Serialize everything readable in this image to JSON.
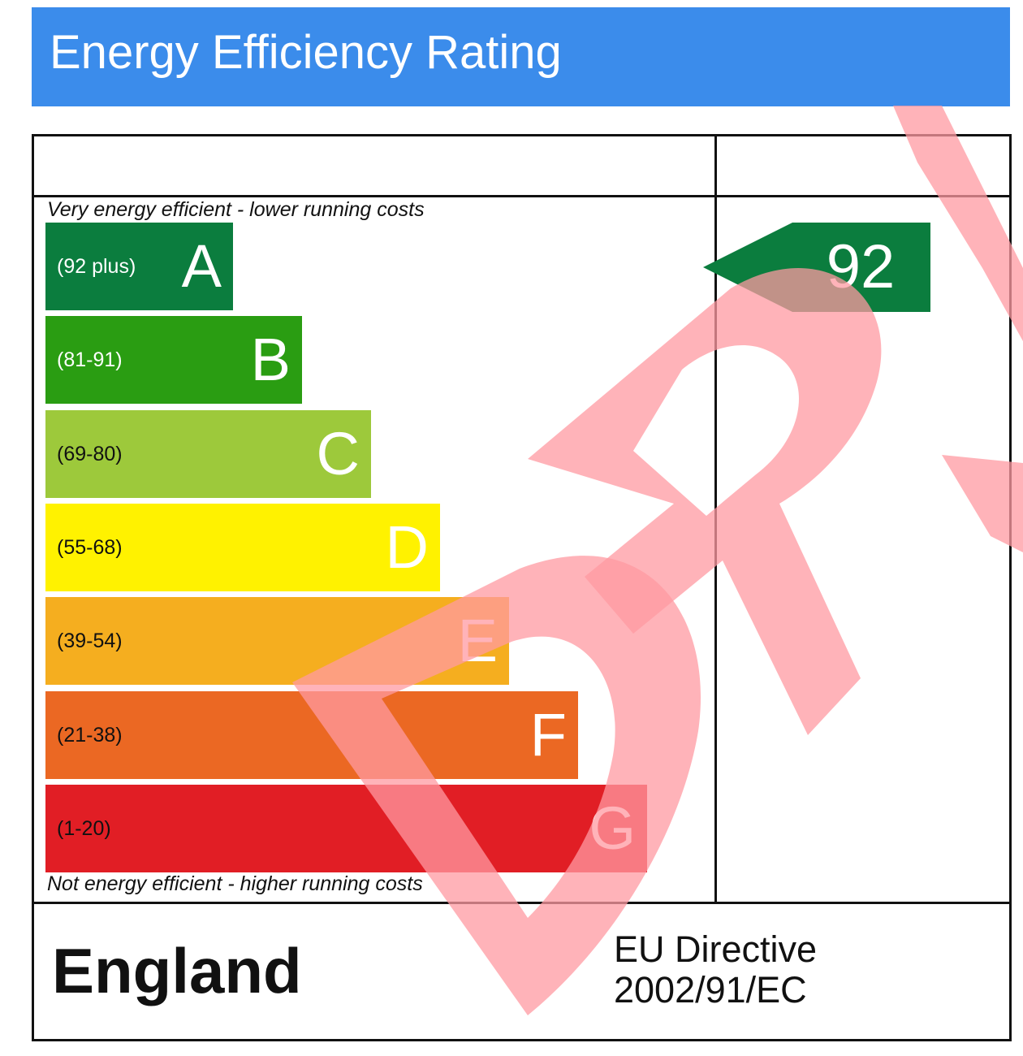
{
  "header": {
    "title": "Energy Efficiency Rating",
    "background": "#3b8ceb"
  },
  "watermark": {
    "text": "DRAFT",
    "color": "#ff9aa2"
  },
  "chart_data": {
    "type": "bar",
    "title": "Energy Efficiency Rating",
    "top_caption": "Very energy efficient - lower running costs",
    "bottom_caption": "Not energy efficient - higher running costs",
    "bands": [
      {
        "letter": "A",
        "range": "(92 plus)",
        "color": "#0b7d3e",
        "range_text_color": "#ffffff"
      },
      {
        "letter": "B",
        "range": "(81-91)",
        "color": "#2a9d12",
        "range_text_color": "#ffffff"
      },
      {
        "letter": "C",
        "range": "(69-80)",
        "color": "#9dc93b",
        "range_text_color": "#111111"
      },
      {
        "letter": "D",
        "range": "(55-68)",
        "color": "#fff200",
        "range_text_color": "#111111"
      },
      {
        "letter": "E",
        "range": "(39-54)",
        "color": "#f5ae1f",
        "range_text_color": "#111111"
      },
      {
        "letter": "F",
        "range": "(21-38)",
        "color": "#eb6823",
        "range_text_color": "#111111"
      },
      {
        "letter": "G",
        "range": "(1-20)",
        "color": "#e11e25",
        "range_text_color": "#111111"
      }
    ],
    "current_rating": {
      "value": 92,
      "band": "A",
      "color": "#0b7d3e"
    }
  },
  "footer": {
    "country": "England",
    "directive_line1": "EU Directive",
    "directive_line2": "2002/91/EC"
  }
}
